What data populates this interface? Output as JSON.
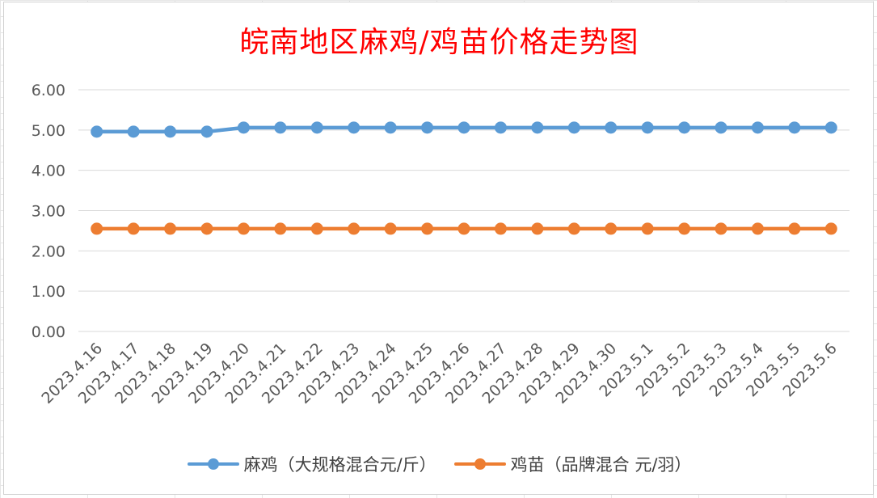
{
  "chart_data": {
    "type": "line",
    "title": "皖南地区麻鸡/鸡苗价格走势图",
    "categories": [
      "2023.4.16",
      "2023.4.17",
      "2023.4.18",
      "2023.4.19",
      "2023.4.20",
      "2023.4.21",
      "2023.4.22",
      "2023.4.23",
      "2023.4.24",
      "2023.4.25",
      "2023.4.26",
      "2023.4.27",
      "2023.4.28",
      "2023.4.29",
      "2023.4.30",
      "2023.5.1",
      "2023.5.2",
      "2023.5.3",
      "2023.5.4",
      "2023.5.5",
      "2023.5.6"
    ],
    "yticks": [
      "0.00",
      "1.00",
      "2.00",
      "3.00",
      "4.00",
      "5.00",
      "6.00"
    ],
    "ylim": [
      0,
      6
    ],
    "grid": true,
    "legend_position": "bottom",
    "series": [
      {
        "name": "麻鸡（大规格混合元/斤）",
        "color": "#5B9BD5",
        "values": [
          4.96,
          4.96,
          4.96,
          4.96,
          5.06,
          5.06,
          5.06,
          5.06,
          5.06,
          5.06,
          5.06,
          5.06,
          5.06,
          5.06,
          5.06,
          5.06,
          5.06,
          5.06,
          5.06,
          5.06,
          5.06
        ]
      },
      {
        "name": "鸡苗（品牌混合 元/羽）",
        "color": "#ED7D31",
        "values": [
          2.55,
          2.55,
          2.55,
          2.55,
          2.55,
          2.55,
          2.55,
          2.55,
          2.55,
          2.55,
          2.55,
          2.55,
          2.55,
          2.55,
          2.55,
          2.55,
          2.55,
          2.55,
          2.55,
          2.55,
          2.55
        ]
      }
    ]
  }
}
